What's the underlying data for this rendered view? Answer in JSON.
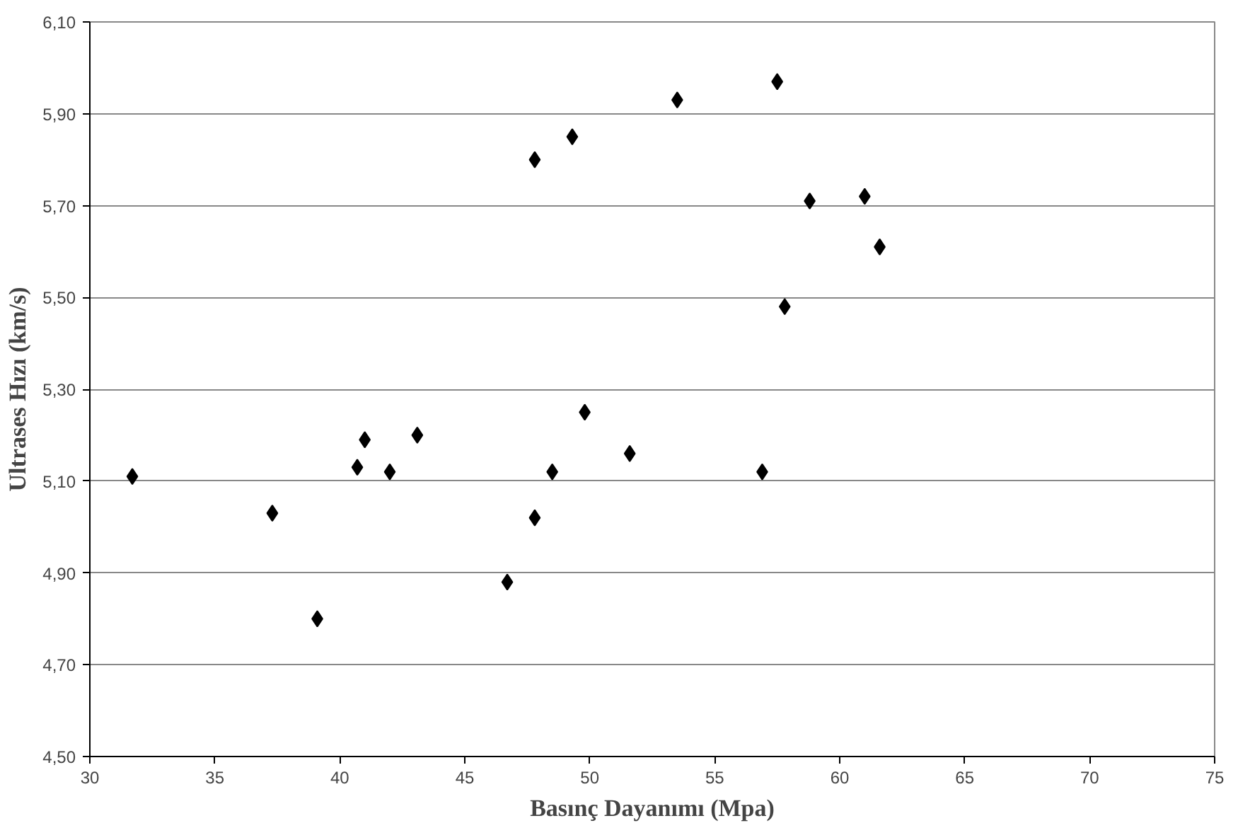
{
  "chart_data": {
    "type": "scatter",
    "xlabel": "Basınç Dayanımı (Mpa)",
    "ylabel": "Ultrases Hızı (km/s)",
    "x": [
      31.7,
      37.3,
      39.1,
      40.7,
      41.0,
      42.0,
      43.1,
      46.7,
      47.8,
      47.8,
      48.5,
      49.3,
      49.8,
      51.6,
      53.5,
      56.9,
      57.5,
      57.8,
      58.8,
      61.0,
      61.6
    ],
    "values": [
      5.11,
      5.03,
      4.8,
      5.13,
      5.19,
      5.12,
      5.2,
      4.88,
      5.8,
      5.02,
      5.12,
      5.85,
      5.25,
      5.16,
      5.93,
      5.12,
      5.97,
      5.48,
      5.71,
      5.72,
      5.61
    ],
    "color": "#000000",
    "marker": "diamond",
    "grid": "y",
    "xlim": [
      30,
      75
    ],
    "xticks": [
      30,
      35,
      40,
      45,
      50,
      55,
      60,
      65,
      70,
      75
    ],
    "ylim": [
      4.5,
      6.1
    ],
    "yticks": [
      {
        "value": 4.5,
        "label": "4,50"
      },
      {
        "value": 4.7,
        "label": "4,70"
      },
      {
        "value": 4.9,
        "label": "4,90"
      },
      {
        "value": 5.1,
        "label": "5,10"
      },
      {
        "value": 5.3,
        "label": "5,30"
      },
      {
        "value": 5.5,
        "label": "5,50"
      },
      {
        "value": 5.7,
        "label": "5,70"
      },
      {
        "value": 5.9,
        "label": "5,90"
      },
      {
        "value": 6.1,
        "label": "6,10"
      }
    ]
  }
}
